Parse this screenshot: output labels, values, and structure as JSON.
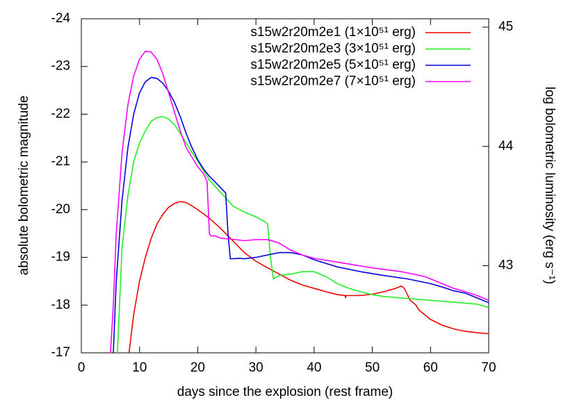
{
  "chart_data": {
    "type": "line",
    "xlabel": "days since the explosion (rest frame)",
    "ylabel": "absolute bolometric magnitude",
    "y2label": "log bolometric luminosity (erg s⁻¹)",
    "xlim": [
      0,
      70
    ],
    "xticks": [
      0,
      10,
      20,
      30,
      40,
      50,
      60,
      70
    ],
    "ylim": [
      -17,
      -24
    ],
    "yticks": [
      -24,
      -23,
      -22,
      -21,
      -20,
      -19,
      -18,
      -17
    ],
    "y2lim": [
      42.27,
      45.07
    ],
    "y2ticks": [
      43,
      44,
      45
    ],
    "legend": "top-right",
    "series": [
      {
        "name": "s15w2r20m2e1 (1×10⁵¹ erg)",
        "color": "#ee0000",
        "x": [
          8.2,
          9,
          10,
          11,
          12,
          13,
          14,
          15,
          16,
          17,
          18,
          19,
          20,
          22,
          24,
          26,
          28,
          30,
          32,
          34,
          36,
          38,
          40,
          42,
          44,
          45.3,
          45.4,
          45.5,
          48,
          50,
          52,
          54,
          55,
          55.5,
          56.5,
          57.5,
          58,
          60,
          62,
          64,
          66,
          68,
          70
        ],
        "values": [
          -17,
          -17.8,
          -18.5,
          -19,
          -19.4,
          -19.7,
          -19.9,
          -20.05,
          -20.13,
          -20.17,
          -20.15,
          -20.08,
          -20,
          -19.82,
          -19.6,
          -19.35,
          -19.1,
          -18.92,
          -18.78,
          -18.65,
          -18.52,
          -18.42,
          -18.35,
          -18.28,
          -18.22,
          -18.2,
          -18.15,
          -18.2,
          -18.2,
          -18.23,
          -18.28,
          -18.35,
          -18.4,
          -18.35,
          -18.1,
          -18,
          -17.9,
          -17.7,
          -17.58,
          -17.5,
          -17.45,
          -17.42,
          -17.4
        ]
      },
      {
        "name": "s15w2r20m2e3 (3×10⁵¹ erg)",
        "color": "#22ee22",
        "x": [
          6.2,
          7,
          8,
          9,
          10,
          11,
          12,
          13,
          14,
          15,
          16,
          17,
          18,
          19,
          20,
          21,
          22,
          24,
          25,
          26,
          28,
          30,
          31.5,
          32,
          32.5,
          33,
          34,
          36,
          38,
          40,
          42,
          44,
          46,
          48,
          50,
          52,
          55,
          60,
          65,
          68,
          70
        ],
        "values": [
          -17,
          -19.2,
          -20.3,
          -21,
          -21.4,
          -21.65,
          -21.85,
          -21.93,
          -21.95,
          -21.9,
          -21.78,
          -21.6,
          -21.4,
          -21.2,
          -21.02,
          -20.82,
          -20.62,
          -20.35,
          -20.22,
          -20.08,
          -19.95,
          -19.85,
          -19.75,
          -19.7,
          -19,
          -18.55,
          -18.62,
          -18.65,
          -18.7,
          -18.7,
          -18.6,
          -18.45,
          -18.35,
          -18.28,
          -18.22,
          -18.18,
          -18.15,
          -18.1,
          -18.05,
          -18.02,
          -17.95
        ]
      },
      {
        "name": "s15w2r20m2e5 (5×10⁵¹ erg)",
        "color": "#0000dd",
        "x": [
          5.5,
          6,
          7,
          8,
          9,
          10,
          11,
          12,
          13,
          14,
          15,
          16,
          17,
          18,
          19,
          20,
          21,
          22,
          23,
          24,
          24.8,
          25.2,
          25.6,
          26,
          27,
          28,
          30,
          32,
          34,
          36,
          38,
          40,
          44,
          48,
          52,
          56,
          60,
          62,
          64,
          66,
          68,
          70
        ],
        "values": [
          -17,
          -18.5,
          -20.2,
          -21.3,
          -22,
          -22.45,
          -22.68,
          -22.77,
          -22.75,
          -22.65,
          -22.48,
          -22.25,
          -21.95,
          -21.6,
          -21.3,
          -21.05,
          -20.85,
          -20.7,
          -20.58,
          -20.45,
          -20.35,
          -19.5,
          -18.97,
          -18.97,
          -18.98,
          -18.97,
          -19,
          -19.05,
          -19.1,
          -19.1,
          -19.05,
          -18.95,
          -18.8,
          -18.7,
          -18.62,
          -18.55,
          -18.45,
          -18.38,
          -18.3,
          -18.25,
          -18.15,
          -18.05
        ]
      },
      {
        "name": "s15w2r20m2e7 (7×10⁵¹ erg)",
        "color": "#ff00ff",
        "x": [
          5,
          5.5,
          6,
          7,
          8,
          9,
          10,
          11,
          12,
          13,
          14,
          15,
          16,
          17,
          18,
          19,
          20,
          21,
          21.6,
          22,
          22.3,
          23,
          24,
          26,
          28,
          30,
          32,
          34,
          36,
          38,
          40,
          45,
          50,
          55,
          59,
          60,
          62,
          64,
          66,
          68,
          70
        ],
        "values": [
          -17,
          -18,
          -19.5,
          -21.2,
          -22.2,
          -22.8,
          -23.15,
          -23.32,
          -23.3,
          -23.15,
          -22.85,
          -22.45,
          -22.05,
          -21.65,
          -21.3,
          -21.1,
          -20.9,
          -20.75,
          -20.6,
          -19.5,
          -19.45,
          -19.45,
          -19.4,
          -19.38,
          -19.35,
          -19.37,
          -19.37,
          -19.3,
          -19.15,
          -19.05,
          -18.98,
          -18.88,
          -18.78,
          -18.7,
          -18.6,
          -18.55,
          -18.45,
          -18.35,
          -18.28,
          -18.2,
          -18.1
        ]
      }
    ]
  }
}
